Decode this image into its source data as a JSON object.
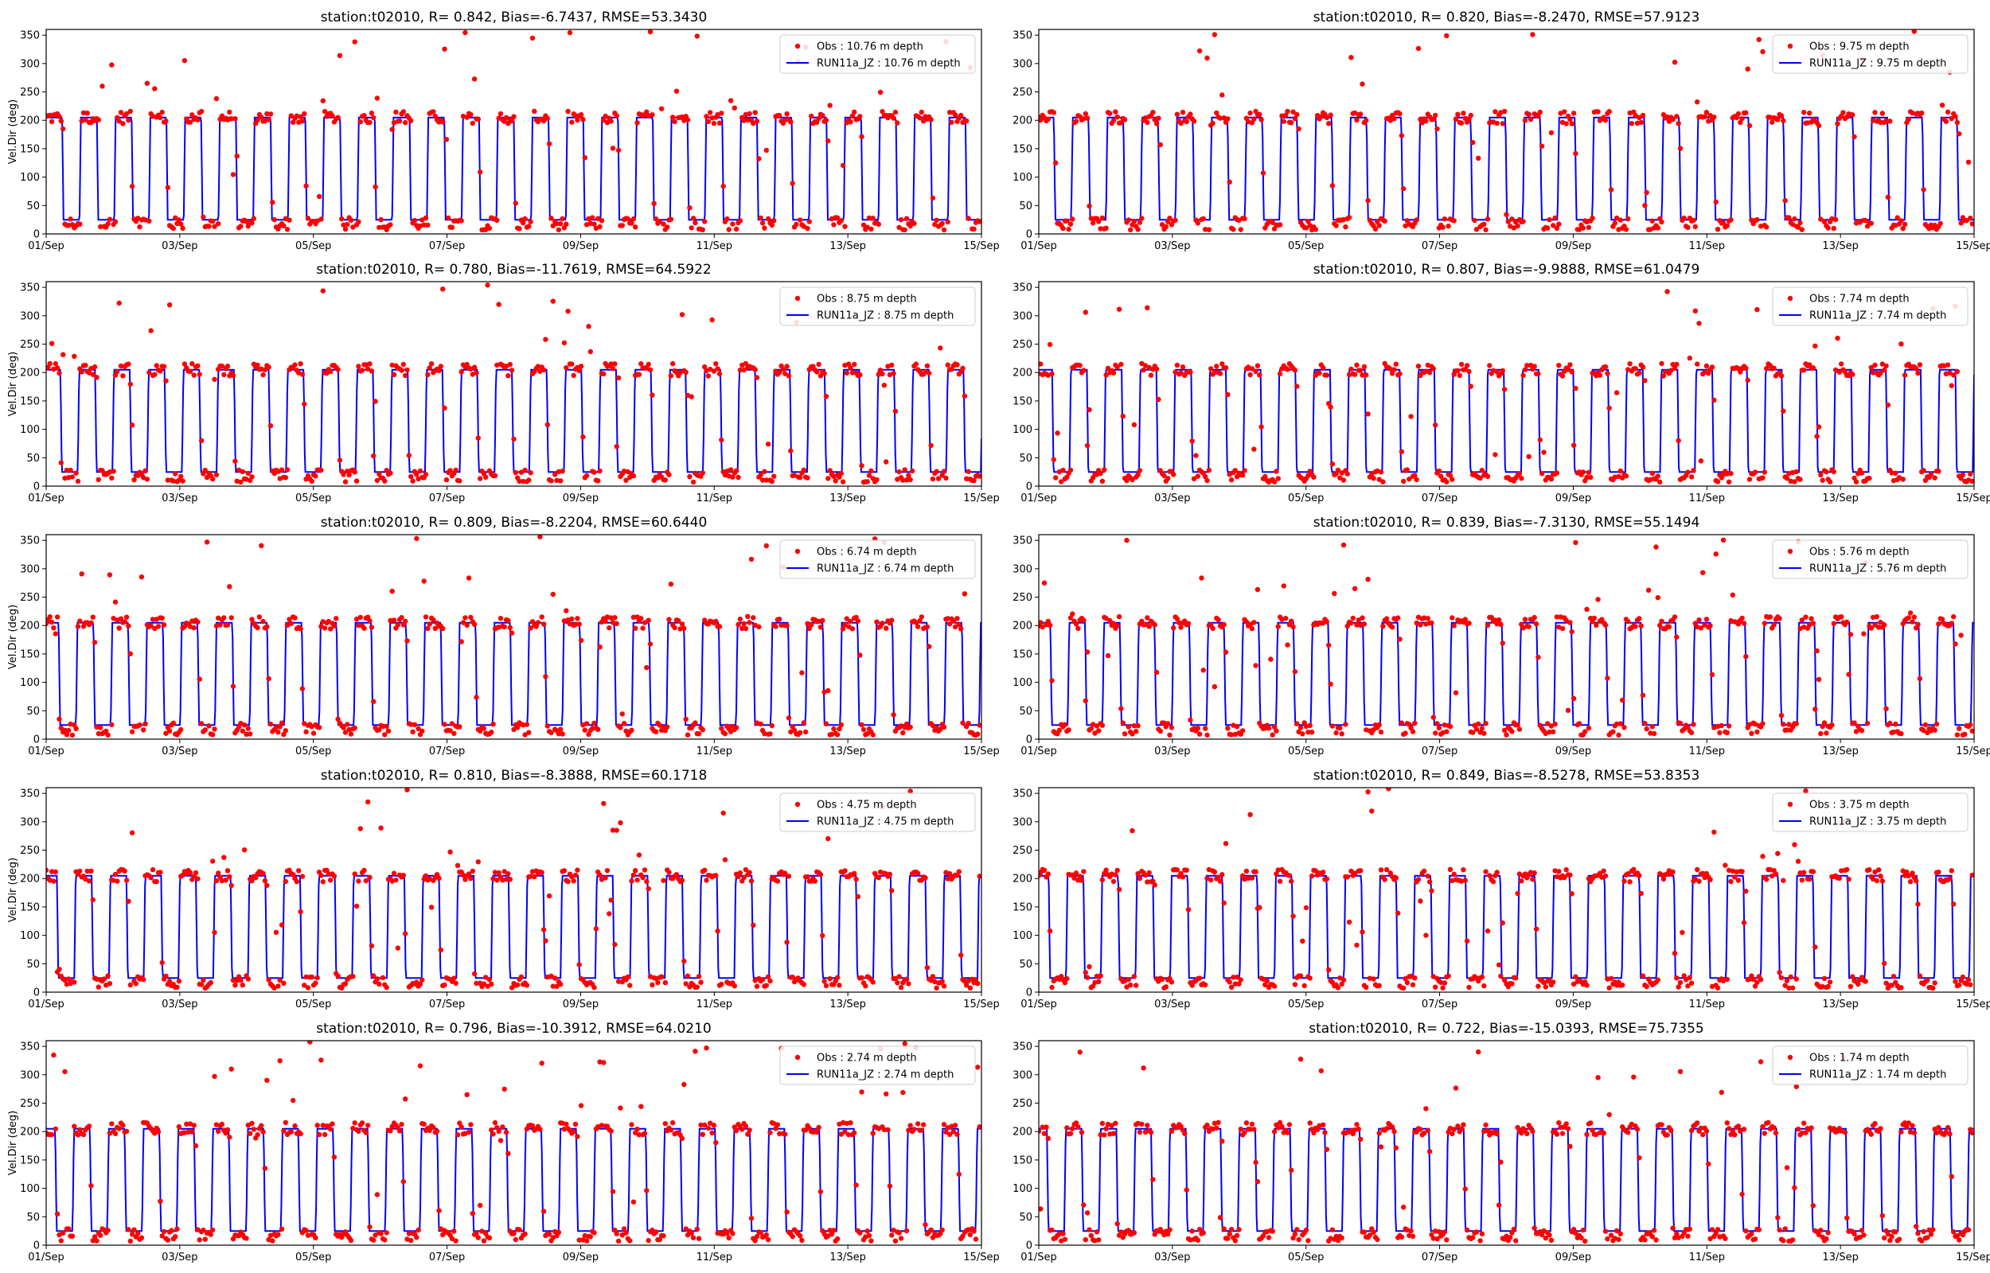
{
  "figure": {
    "colors": {
      "obs": "#ff0000",
      "model": "#0000ff",
      "axes": "#000000",
      "legend_border": "#cccccc"
    }
  },
  "chart_data": [
    {
      "type": "scatter+line",
      "title": "station:t02010, R= 0.842, Bias=-6.7437, RMSE=53.3430",
      "ylabel": "Vel.Dir (deg)",
      "xlabel": "",
      "x_ticks": [
        "01/Sep",
        "03/Sep",
        "05/Sep",
        "07/Sep",
        "09/Sep",
        "11/Sep",
        "13/Sep",
        "15/Sep"
      ],
      "xlim_days": [
        1,
        15
      ],
      "y_ticks": [
        0,
        50,
        100,
        150,
        200,
        250,
        300,
        350
      ],
      "ylim": [
        0,
        360
      ],
      "legend": "upper right",
      "series": [
        {
          "name": "Obs : 10.76 m depth",
          "kind": "scatter",
          "high": 205,
          "low": 18
        },
        {
          "name": "RUN11a_JZ : 10.76 m depth",
          "kind": "line",
          "high": 205,
          "low": 25
        }
      ]
    },
    {
      "type": "scatter+line",
      "title": "station:t02010, R= 0.820, Bias=-8.2470, RMSE=57.9123",
      "ylabel": "",
      "xlabel": "",
      "x_ticks": [
        "01/Sep",
        "03/Sep",
        "05/Sep",
        "07/Sep",
        "09/Sep",
        "11/Sep",
        "13/Sep",
        "15/Sep"
      ],
      "xlim_days": [
        1,
        15
      ],
      "y_ticks": [
        0,
        50,
        100,
        150,
        200,
        250,
        300,
        350
      ],
      "ylim": [
        0,
        360
      ],
      "legend": "upper right",
      "series": [
        {
          "name": "Obs : 9.75 m depth",
          "kind": "scatter",
          "high": 205,
          "low": 18
        },
        {
          "name": "RUN11a_JZ : 9.75 m depth",
          "kind": "line",
          "high": 205,
          "low": 25
        }
      ]
    },
    {
      "type": "scatter+line",
      "title": "station:t02010, R= 0.780, Bias=-11.7619, RMSE=64.5922",
      "ylabel": "Vel.Dir (deg)",
      "xlabel": "",
      "x_ticks": [
        "01/Sep",
        "03/Sep",
        "05/Sep",
        "07/Sep",
        "09/Sep",
        "11/Sep",
        "13/Sep",
        "15/Sep"
      ],
      "xlim_days": [
        1,
        15
      ],
      "y_ticks": [
        0,
        50,
        100,
        150,
        200,
        250,
        300,
        350
      ],
      "ylim": [
        0,
        360
      ],
      "legend": "upper right",
      "series": [
        {
          "name": "Obs : 8.75 m depth",
          "kind": "scatter",
          "high": 205,
          "low": 18
        },
        {
          "name": "RUN11a_JZ : 8.75 m depth",
          "kind": "line",
          "high": 205,
          "low": 25
        }
      ]
    },
    {
      "type": "scatter+line",
      "title": "station:t02010, R= 0.807, Bias=-9.9888, RMSE=61.0479",
      "ylabel": "",
      "xlabel": "",
      "x_ticks": [
        "01/Sep",
        "03/Sep",
        "05/Sep",
        "07/Sep",
        "09/Sep",
        "11/Sep",
        "13/Sep",
        "15/Sep"
      ],
      "xlim_days": [
        1,
        15
      ],
      "y_ticks": [
        0,
        50,
        100,
        150,
        200,
        250,
        300,
        350
      ],
      "ylim": [
        0,
        360
      ],
      "legend": "upper right",
      "series": [
        {
          "name": "Obs : 7.74 m depth",
          "kind": "scatter",
          "high": 205,
          "low": 18
        },
        {
          "name": "RUN11a_JZ : 7.74 m depth",
          "kind": "line",
          "high": 205,
          "low": 25
        }
      ]
    },
    {
      "type": "scatter+line",
      "title": "station:t02010, R= 0.809, Bias=-8.2204, RMSE=60.6440",
      "ylabel": "Vel.Dir (deg)",
      "xlabel": "",
      "x_ticks": [
        "01/Sep",
        "03/Sep",
        "05/Sep",
        "07/Sep",
        "09/Sep",
        "11/Sep",
        "13/Sep",
        "15/Sep"
      ],
      "xlim_days": [
        1,
        15
      ],
      "y_ticks": [
        0,
        50,
        100,
        150,
        200,
        250,
        300,
        350
      ],
      "ylim": [
        0,
        360
      ],
      "legend": "upper right",
      "series": [
        {
          "name": "Obs : 6.74 m depth",
          "kind": "scatter",
          "high": 205,
          "low": 18
        },
        {
          "name": "RUN11a_JZ : 6.74 m depth",
          "kind": "line",
          "high": 205,
          "low": 25
        }
      ]
    },
    {
      "type": "scatter+line",
      "title": "station:t02010, R= 0.839, Bias=-7.3130, RMSE=55.1494",
      "ylabel": "",
      "xlabel": "",
      "x_ticks": [
        "01/Sep",
        "03/Sep",
        "05/Sep",
        "07/Sep",
        "09/Sep",
        "11/Sep",
        "13/Sep",
        "15/Sep"
      ],
      "xlim_days": [
        1,
        15
      ],
      "y_ticks": [
        0,
        50,
        100,
        150,
        200,
        250,
        300,
        350
      ],
      "ylim": [
        0,
        360
      ],
      "legend": "upper right",
      "series": [
        {
          "name": "Obs : 5.76 m depth",
          "kind": "scatter",
          "high": 205,
          "low": 18
        },
        {
          "name": "RUN11a_JZ : 5.76 m depth",
          "kind": "line",
          "high": 205,
          "low": 25
        }
      ]
    },
    {
      "type": "scatter+line",
      "title": "station:t02010, R= 0.810, Bias=-8.3888, RMSE=60.1718",
      "ylabel": "Vel.Dir (deg)",
      "xlabel": "",
      "x_ticks": [
        "01/Sep",
        "03/Sep",
        "05/Sep",
        "07/Sep",
        "09/Sep",
        "11/Sep",
        "13/Sep",
        "15/Sep"
      ],
      "xlim_days": [
        1,
        15
      ],
      "y_ticks": [
        0,
        50,
        100,
        150,
        200,
        250,
        300,
        350
      ],
      "ylim": [
        0,
        360
      ],
      "legend": "upper right",
      "series": [
        {
          "name": "Obs : 4.75 m depth",
          "kind": "scatter",
          "high": 205,
          "low": 18
        },
        {
          "name": "RUN11a_JZ : 4.75 m depth",
          "kind": "line",
          "high": 205,
          "low": 25
        }
      ]
    },
    {
      "type": "scatter+line",
      "title": "station:t02010, R= 0.849, Bias=-8.5278, RMSE=53.8353",
      "ylabel": "",
      "xlabel": "",
      "x_ticks": [
        "01/Sep",
        "03/Sep",
        "05/Sep",
        "07/Sep",
        "09/Sep",
        "11/Sep",
        "13/Sep",
        "15/Sep"
      ],
      "xlim_days": [
        1,
        15
      ],
      "y_ticks": [
        0,
        50,
        100,
        150,
        200,
        250,
        300,
        350
      ],
      "ylim": [
        0,
        360
      ],
      "legend": "upper right",
      "series": [
        {
          "name": "Obs : 3.75 m depth",
          "kind": "scatter",
          "high": 205,
          "low": 18
        },
        {
          "name": "RUN11a_JZ : 3.75 m depth",
          "kind": "line",
          "high": 205,
          "low": 25
        }
      ]
    },
    {
      "type": "scatter+line",
      "title": "station:t02010, R= 0.796, Bias=-10.3912, RMSE=64.0210",
      "ylabel": "Vel.Dir (deg)",
      "xlabel": "",
      "x_ticks": [
        "01/Sep",
        "03/Sep",
        "05/Sep",
        "07/Sep",
        "09/Sep",
        "11/Sep",
        "13/Sep",
        "15/Sep"
      ],
      "xlim_days": [
        1,
        15
      ],
      "y_ticks": [
        0,
        50,
        100,
        150,
        200,
        250,
        300,
        350
      ],
      "ylim": [
        0,
        360
      ],
      "legend": "upper right",
      "series": [
        {
          "name": "Obs : 2.74 m depth",
          "kind": "scatter",
          "high": 205,
          "low": 18
        },
        {
          "name": "RUN11a_JZ : 2.74 m depth",
          "kind": "line",
          "high": 205,
          "low": 25
        }
      ]
    },
    {
      "type": "scatter+line",
      "title": "station:t02010, R= 0.722, Bias=-15.0393, RMSE=75.7355",
      "ylabel": "",
      "xlabel": "",
      "x_ticks": [
        "01/Sep",
        "03/Sep",
        "05/Sep",
        "07/Sep",
        "09/Sep",
        "11/Sep",
        "13/Sep",
        "15/Sep"
      ],
      "xlim_days": [
        1,
        15
      ],
      "y_ticks": [
        0,
        50,
        100,
        150,
        200,
        250,
        300,
        350
      ],
      "ylim": [
        0,
        360
      ],
      "legend": "upper right",
      "series": [
        {
          "name": "Obs : 1.74 m depth",
          "kind": "scatter",
          "high": 205,
          "low": 18
        },
        {
          "name": "RUN11a_JZ : 1.74 m depth",
          "kind": "line",
          "high": 205,
          "low": 25
        }
      ]
    }
  ]
}
